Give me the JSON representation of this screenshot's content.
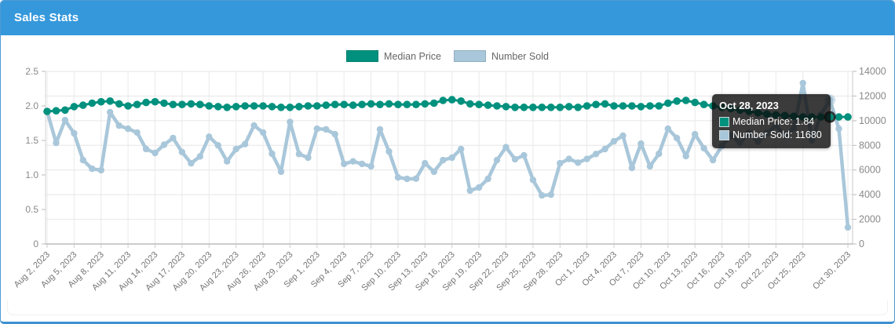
{
  "header": {
    "title": "Sales Stats"
  },
  "legend": {
    "items": [
      {
        "label": "Median Price",
        "color": "#00917e"
      },
      {
        "label": "Number Sold",
        "color": "#a9c7da"
      }
    ]
  },
  "tooltip": {
    "title": "Oct 28, 2023",
    "rows": [
      {
        "text": "Median Price: 1.84",
        "color": "#00917e"
      },
      {
        "text": "Number Sold: 11680",
        "color": "#a9c7da"
      }
    ],
    "day_index": 87
  },
  "chart_data": {
    "type": "line",
    "title": "Sales Stats",
    "x": [
      "Aug 2, 2023",
      "Aug 3, 2023",
      "Aug 4, 2023",
      "Aug 5, 2023",
      "Aug 6, 2023",
      "Aug 7, 2023",
      "Aug 8, 2023",
      "Aug 9, 2023",
      "Aug 10, 2023",
      "Aug 11, 2023",
      "Aug 12, 2023",
      "Aug 13, 2023",
      "Aug 14, 2023",
      "Aug 15, 2023",
      "Aug 16, 2023",
      "Aug 17, 2023",
      "Aug 18, 2023",
      "Aug 19, 2023",
      "Aug 20, 2023",
      "Aug 21, 2023",
      "Aug 22, 2023",
      "Aug 23, 2023",
      "Aug 24, 2023",
      "Aug 25, 2023",
      "Aug 26, 2023",
      "Aug 27, 2023",
      "Aug 28, 2023",
      "Aug 29, 2023",
      "Aug 30, 2023",
      "Aug 31, 2023",
      "Sep 1, 2023",
      "Sep 2, 2023",
      "Sep 3, 2023",
      "Sep 4, 2023",
      "Sep 5, 2023",
      "Sep 6, 2023",
      "Sep 7, 2023",
      "Sep 8, 2023",
      "Sep 9, 2023",
      "Sep 10, 2023",
      "Sep 11, 2023",
      "Sep 12, 2023",
      "Sep 13, 2023",
      "Sep 14, 2023",
      "Sep 15, 2023",
      "Sep 16, 2023",
      "Sep 17, 2023",
      "Sep 18, 2023",
      "Sep 19, 2023",
      "Sep 20, 2023",
      "Sep 21, 2023",
      "Sep 22, 2023",
      "Sep 23, 2023",
      "Sep 24, 2023",
      "Sep 25, 2023",
      "Sep 26, 2023",
      "Sep 27, 2023",
      "Sep 28, 2023",
      "Sep 29, 2023",
      "Sep 30, 2023",
      "Oct 1, 2023",
      "Oct 2, 2023",
      "Oct 3, 2023",
      "Oct 4, 2023",
      "Oct 5, 2023",
      "Oct 6, 2023",
      "Oct 7, 2023",
      "Oct 8, 2023",
      "Oct 9, 2023",
      "Oct 10, 2023",
      "Oct 11, 2023",
      "Oct 12, 2023",
      "Oct 13, 2023",
      "Oct 14, 2023",
      "Oct 15, 2023",
      "Oct 16, 2023",
      "Oct 17, 2023",
      "Oct 18, 2023",
      "Oct 19, 2023",
      "Oct 20, 2023",
      "Oct 21, 2023",
      "Oct 22, 2023",
      "Oct 23, 2023",
      "Oct 24, 2023",
      "Oct 25, 2023",
      "Oct 26, 2023",
      "Oct 27, 2023",
      "Oct 28, 2023",
      "Oct 29, 2023",
      "Oct 30, 2023"
    ],
    "x_tick_days": [
      0,
      3,
      6,
      9,
      12,
      15,
      18,
      21,
      24,
      27,
      30,
      33,
      36,
      39,
      42,
      45,
      48,
      51,
      54,
      57,
      60,
      63,
      66,
      69,
      72,
      75,
      78,
      81,
      84,
      89
    ],
    "series": [
      {
        "name": "Median Price",
        "axis": "left",
        "color": "#00917e",
        "values": [
          1.92,
          1.93,
          1.94,
          1.99,
          2.01,
          2.04,
          2.06,
          2.07,
          2.03,
          2.0,
          2.02,
          2.05,
          2.06,
          2.04,
          2.02,
          2.02,
          2.03,
          2.02,
          2.0,
          1.99,
          1.98,
          1.99,
          2.0,
          2.0,
          2.0,
          1.99,
          1.98,
          1.98,
          1.99,
          2.0,
          2.0,
          2.01,
          2.02,
          2.02,
          2.01,
          2.02,
          2.03,
          2.02,
          2.03,
          2.02,
          2.02,
          2.02,
          2.03,
          2.04,
          2.08,
          2.09,
          2.07,
          2.03,
          2.02,
          2.01,
          2.0,
          1.99,
          1.98,
          1.98,
          1.98,
          1.98,
          1.98,
          1.98,
          1.99,
          1.98,
          2.0,
          2.02,
          2.03,
          2.0,
          2.0,
          2.0,
          1.99,
          2.0,
          2.0,
          2.04,
          2.07,
          2.08,
          2.05,
          2.02,
          2.0,
          1.98,
          1.96,
          1.94,
          1.92,
          1.9,
          1.88,
          1.87,
          1.86,
          1.85,
          1.84,
          1.84,
          1.84,
          1.84,
          1.84,
          1.84
        ]
      },
      {
        "name": "Number Sold",
        "axis": "right",
        "color": "#a9c7da",
        "values": [
          10760,
          8200,
          10050,
          8970,
          6800,
          6100,
          5980,
          10690,
          9600,
          9350,
          9040,
          7700,
          7380,
          8050,
          8600,
          7450,
          6550,
          7100,
          8700,
          8000,
          6700,
          7700,
          8100,
          9610,
          9040,
          7320,
          5860,
          9900,
          7300,
          7000,
          9350,
          9300,
          8900,
          6500,
          6700,
          6500,
          6300,
          9300,
          7500,
          5400,
          5280,
          5300,
          6550,
          5860,
          6800,
          7000,
          7700,
          4330,
          4580,
          5280,
          6800,
          7850,
          6870,
          7190,
          5200,
          3940,
          4000,
          6550,
          6900,
          6600,
          6900,
          7300,
          7700,
          8330,
          8780,
          6170,
          8140,
          6300,
          7320,
          9350,
          8590,
          7130,
          8900,
          7770,
          6800,
          7950,
          8800,
          8200,
          9000,
          8300,
          9000,
          9600,
          8800,
          9400,
          13045,
          8400,
          10500,
          11680,
          9350,
          1340
        ]
      }
    ],
    "left_axis": {
      "max": 2.5,
      "ticks": [
        0,
        0.5,
        1.0,
        1.5,
        2.0,
        2.5
      ],
      "labels": [
        "0",
        "0.5",
        "1.0",
        "1.5",
        "2.0",
        "2.5"
      ]
    },
    "right_axis": {
      "max": 14000,
      "ticks": [
        0,
        2000,
        4000,
        6000,
        8000,
        10000,
        12000,
        14000
      ],
      "labels": [
        "0",
        "2000",
        "4000",
        "6000",
        "8000",
        "10000",
        "12000",
        "14000"
      ]
    },
    "grid": true,
    "legend_position": "top-center",
    "hover": {
      "day_index": 87,
      "median_price": 1.84,
      "number_sold": 11680
    }
  }
}
